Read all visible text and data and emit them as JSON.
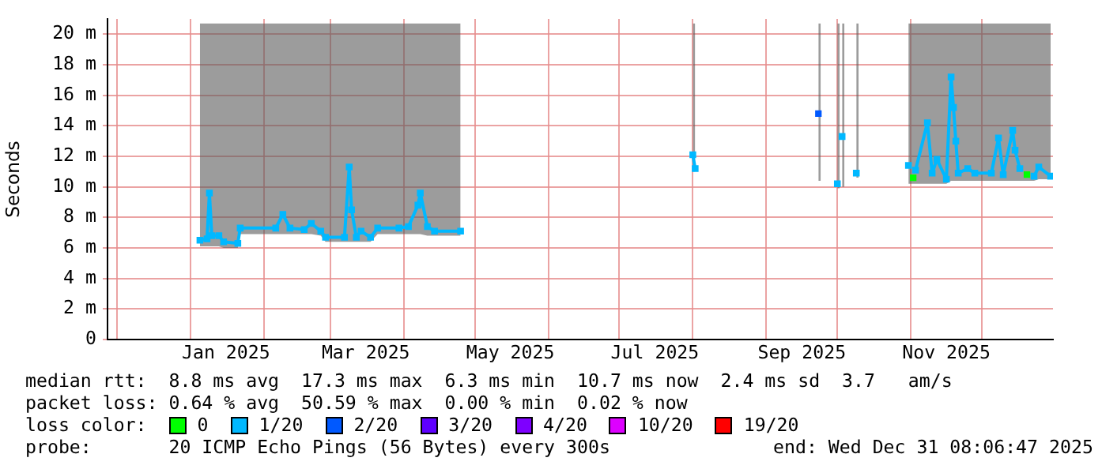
{
  "chart_data": {
    "type": "line",
    "ylabel": "Seconds",
    "xlim": [
      "2024-11-27",
      "2025-12-31"
    ],
    "xticks": [
      {
        "value": "2024-12-01",
        "label": null
      },
      {
        "value": "2025-01-01",
        "label": null
      },
      {
        "value": "2025-01-16",
        "label": "Jan 2025"
      },
      {
        "value": "2025-02-01",
        "label": null
      },
      {
        "value": "2025-03-01",
        "label": null
      },
      {
        "value": "2025-03-16",
        "label": "Mar 2025"
      },
      {
        "value": "2025-04-01",
        "label": null
      },
      {
        "value": "2025-05-01",
        "label": null
      },
      {
        "value": "2025-05-16",
        "label": "May 2025"
      },
      {
        "value": "2025-06-01",
        "label": null
      },
      {
        "value": "2025-07-01",
        "label": null
      },
      {
        "value": "2025-07-16",
        "label": "Jul 2025"
      },
      {
        "value": "2025-08-01",
        "label": null
      },
      {
        "value": "2025-09-01",
        "label": null
      },
      {
        "value": "2025-09-16",
        "label": "Sep 2025"
      },
      {
        "value": "2025-10-01",
        "label": null
      },
      {
        "value": "2025-11-01",
        "label": null
      },
      {
        "value": "2025-11-16",
        "label": "Nov 2025"
      },
      {
        "value": "2025-12-01",
        "label": null
      }
    ],
    "ylim": [
      0,
      21
    ],
    "yticks": [
      0,
      {
        "value": 2,
        "label": "2 m"
      },
      {
        "value": 4,
        "label": "4 m"
      },
      {
        "value": 6,
        "label": "6 m"
      },
      {
        "value": 8,
        "label": "8 m"
      },
      {
        "value": 10,
        "label": "10 m"
      },
      {
        "value": 12,
        "label": "12 m"
      },
      {
        "value": 14,
        "label": "14 m"
      },
      {
        "value": 16,
        "label": "16 m"
      },
      {
        "value": 18,
        "label": "18 m"
      },
      {
        "value": 20,
        "label": "20 m"
      }
    ],
    "grid": true,
    "legend": "bottom",
    "legend_title": "loss color:",
    "marker": "square",
    "series": [
      {
        "name": "0",
        "color": "#00ff00",
        "type": "scatter",
        "x": [
          "2025-11-02",
          "2025-12-20"
        ],
        "values": [
          10.6,
          10.8
        ]
      },
      {
        "name": "1/20",
        "color": "#00b8ff",
        "x": [
          "2025-01-05",
          "2025-01-08",
          "2025-01-09",
          "2025-01-10",
          "2025-01-13",
          "2025-01-15",
          "2025-01-21",
          "2025-01-22",
          "2025-02-06",
          "2025-02-09",
          "2025-02-12",
          "2025-02-18",
          "2025-02-21",
          "2025-02-25",
          "2025-02-27",
          "2025-03-07",
          "2025-03-09",
          "2025-03-10",
          "2025-03-12",
          "2025-03-14",
          "2025-03-18",
          "2025-03-21",
          "2025-03-30",
          "2025-04-03",
          "2025-04-07",
          "2025-04-08",
          "2025-04-11",
          "2025-04-14",
          "2025-04-25",
          "2025-05-20",
          "2025-08-01",
          "2025-08-02",
          "2025-08-20",
          "2025-09-23",
          "2025-09-24",
          "2025-09-27",
          "2025-10-01",
          "2025-10-02",
          "2025-10-02T12:00",
          "2025-10-03",
          "2025-10-04",
          "2025-10-06",
          "2025-10-09",
          "2025-10-10",
          "2025-10-20",
          "2025-10-31",
          "2025-11-02",
          "2025-11-03",
          "2025-11-08",
          "2025-11-10",
          "2025-11-12",
          "2025-11-16",
          "2025-11-18",
          "2025-11-19",
          "2025-11-20",
          "2025-11-21",
          "2025-11-25",
          "2025-11-28",
          "2025-12-05",
          "2025-12-08",
          "2025-12-10",
          "2025-12-14",
          "2025-12-15",
          "2025-12-17",
          "2025-12-20",
          "2025-12-23",
          "2025-12-25",
          "2025-12-30"
        ],
        "values": [
          6.5,
          6.6,
          9.6,
          6.8,
          6.8,
          6.4,
          6.3,
          7.3,
          7.3,
          8.2,
          7.3,
          7.2,
          7.6,
          7.1,
          6.7,
          6.7,
          11.3,
          8.5,
          6.7,
          7.1,
          6.7,
          7.3,
          7.3,
          7.4,
          8.8,
          9.6,
          7.4,
          7.1,
          7.1,
          null,
          12.1,
          11.2,
          null,
          null,
          null,
          null,
          10.2,
          null,
          null,
          13.3,
          null,
          null,
          10.9,
          null,
          null,
          11.4,
          null,
          11.1,
          14.2,
          10.9,
          11.8,
          10.5,
          17.2,
          15.2,
          13.0,
          10.9,
          11.2,
          10.9,
          10.9,
          13.2,
          10.8,
          13.7,
          12.4,
          11.2,
          null,
          10.7,
          11.3,
          10.7
        ],
        "lower": [
          6.1,
          6.1,
          6.1,
          6.1,
          6.1,
          6.0,
          6.0,
          6.9,
          6.9,
          6.9,
          6.9,
          6.9,
          6.9,
          6.8,
          6.4,
          6.4,
          6.4,
          6.4,
          6.4,
          6.4,
          6.4,
          6.9,
          6.9,
          6.9,
          6.9,
          6.9,
          6.8,
          6.8,
          6.8,
          null,
          11.0,
          11.0,
          null,
          10.4,
          10.4,
          null,
          9.9,
          9.9,
          null,
          10.0,
          10.0,
          null,
          10.6,
          10.6,
          null,
          10.2,
          10.2,
          10.2,
          10.2,
          10.2,
          10.2,
          10.2,
          10.4,
          10.4,
          10.4,
          10.4,
          10.4,
          10.4,
          10.4,
          10.4,
          10.4,
          10.4,
          10.4,
          10.4,
          10.4,
          10.4,
          10.5,
          10.5
        ],
        "upper": [
          20.7,
          20.7,
          20.7,
          20.7,
          20.7,
          20.7,
          20.7,
          20.7,
          20.7,
          20.7,
          20.7,
          20.7,
          20.7,
          20.7,
          20.7,
          20.7,
          20.7,
          20.7,
          20.7,
          20.7,
          20.7,
          20.7,
          20.7,
          20.7,
          20.7,
          20.7,
          20.7,
          20.7,
          20.7,
          null,
          20.7,
          20.7,
          null,
          20.7,
          20.7,
          null,
          20.7,
          20.7,
          null,
          20.7,
          20.7,
          null,
          20.7,
          20.7,
          null,
          20.7,
          20.7,
          20.7,
          20.7,
          20.7,
          20.7,
          20.7,
          20.7,
          20.7,
          20.7,
          20.7,
          20.7,
          20.7,
          20.7,
          20.7,
          20.7,
          20.7,
          20.7,
          20.7,
          20.7,
          20.7,
          20.7,
          20.7
        ]
      },
      {
        "name": "2/20",
        "color": "#0059ff",
        "type": "scatter",
        "x": [
          "2025-09-23"
        ],
        "values": [
          14.8
        ]
      },
      {
        "name": "3/20",
        "color": "#5e00ff",
        "type": "scatter"
      },
      {
        "name": "4/20",
        "color": "#7e00ff",
        "type": "scatter"
      },
      {
        "name": "10/20",
        "color": "#dd00ff",
        "type": "scatter"
      },
      {
        "name": "19/20",
        "color": "#ff0000",
        "type": "scatter"
      }
    ],
    "annotations": [
      "median rtt:  8.8 ms avg  17.3 ms max  6.3 ms min  10.7 ms now  2.4 ms sd  3.7   am/s",
      "packet loss: 0.64 % avg  50.59 % max  0.00 % min  0.02 % now",
      "probe:       20 ICMP Echo Pings (56 Bytes) every 300s",
      "end: Wed Dec 31 08:06:47 2025"
    ]
  }
}
